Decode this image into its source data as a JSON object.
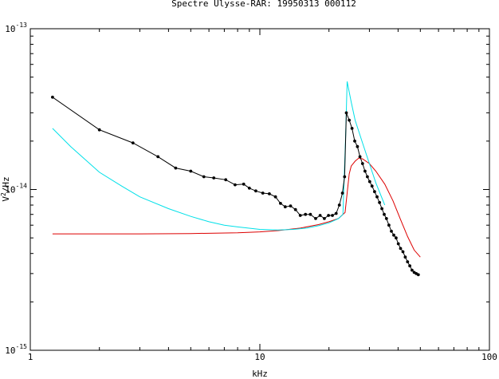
{
  "chart_data": {
    "type": "line",
    "title": "Spectre Ulysse-RAR: 19950313  000112",
    "xlabel": "kHz",
    "ylabel_base": "V",
    "ylabel_sup": "2",
    "ylabel_rest": "/Hz",
    "xscale": "log",
    "yscale": "log",
    "xlim": [
      1,
      100
    ],
    "ylim": [
      1e-15,
      1e-13
    ],
    "grid": false,
    "x_ticks": [
      {
        "value": 1,
        "label": "1"
      },
      {
        "value": 10,
        "label": "10"
      },
      {
        "value": 100,
        "label": "100"
      }
    ],
    "y_ticks": [
      {
        "value": 1e-15,
        "base": "10",
        "exp": "-15"
      },
      {
        "value": 1e-14,
        "base": "10",
        "exp": "-14"
      },
      {
        "value": 1e-13,
        "base": "10",
        "exp": "-13"
      }
    ],
    "series": [
      {
        "key": "measured",
        "color": "#000000",
        "markers": true,
        "points": [
          [
            1.25,
            3.75e-14
          ],
          [
            2.0,
            2.35e-14
          ],
          [
            2.8,
            1.95e-14
          ],
          [
            3.6,
            1.6e-14
          ],
          [
            4.3,
            1.36e-14
          ],
          [
            5.0,
            1.3e-14
          ],
          [
            5.7,
            1.2e-14
          ],
          [
            6.3,
            1.18e-14
          ],
          [
            7.1,
            1.15e-14
          ],
          [
            7.8,
            1.07e-14
          ],
          [
            8.5,
            1.08e-14
          ],
          [
            9.0,
            1.02e-14
          ],
          [
            9.6,
            9.8e-15
          ],
          [
            10.3,
            9.5e-15
          ],
          [
            11.0,
            9.4e-15
          ],
          [
            11.7,
            9e-15
          ],
          [
            12.3,
            8.2e-15
          ],
          [
            12.9,
            7.8e-15
          ],
          [
            13.6,
            7.9e-15
          ],
          [
            14.3,
            7.5e-15
          ],
          [
            15.0,
            6.9e-15
          ],
          [
            15.8,
            7e-15
          ],
          [
            16.6,
            7e-15
          ],
          [
            17.5,
            6.6e-15
          ],
          [
            18.3,
            6.9e-15
          ],
          [
            19.1,
            6.6e-15
          ],
          [
            19.9,
            6.9e-15
          ],
          [
            20.7,
            6.9e-15
          ],
          [
            21.5,
            7.1e-15
          ],
          [
            22.2,
            8e-15
          ],
          [
            22.9,
            9.5e-15
          ],
          [
            23.4,
            1.2e-14
          ],
          [
            23.8,
            3e-14
          ],
          [
            24.5,
            2.7e-14
          ],
          [
            25.2,
            2.4e-14
          ],
          [
            25.9,
            2e-14
          ],
          [
            26.6,
            1.85e-14
          ],
          [
            27.3,
            1.6e-14
          ],
          [
            28.0,
            1.45e-14
          ],
          [
            28.7,
            1.3e-14
          ],
          [
            29.4,
            1.2e-14
          ],
          [
            30.1,
            1.12e-14
          ],
          [
            30.8,
            1.05e-14
          ],
          [
            31.6,
            9.7e-15
          ],
          [
            32.4,
            9e-15
          ],
          [
            33.2,
            8.3e-15
          ],
          [
            34.0,
            7.6e-15
          ],
          [
            34.8,
            7e-15
          ],
          [
            35.6,
            6.6e-15
          ],
          [
            36.5,
            6e-15
          ],
          [
            37.4,
            5.5e-15
          ],
          [
            38.3,
            5.2e-15
          ],
          [
            39.2,
            5e-15
          ],
          [
            40.1,
            4.6e-15
          ],
          [
            41.0,
            4.3e-15
          ],
          [
            42.0,
            4.1e-15
          ],
          [
            43.0,
            3.8e-15
          ],
          [
            44.0,
            3.55e-15
          ],
          [
            45.0,
            3.35e-15
          ],
          [
            46.0,
            3.15e-15
          ],
          [
            47.0,
            3.05e-15
          ],
          [
            48.0,
            3e-15
          ],
          [
            49.0,
            2.95e-15
          ]
        ]
      },
      {
        "key": "model-cyan",
        "color": "#00e0e8",
        "markers": false,
        "points": [
          [
            1.25,
            2.4e-14
          ],
          [
            1.5,
            1.85e-14
          ],
          [
            2.0,
            1.28e-14
          ],
          [
            2.5,
            1.05e-14
          ],
          [
            3.0,
            9e-15
          ],
          [
            4.0,
            7.6e-15
          ],
          [
            5.0,
            6.8e-15
          ],
          [
            6.0,
            6.3e-15
          ],
          [
            7.0,
            6e-15
          ],
          [
            8.0,
            5.85e-15
          ],
          [
            10.0,
            5.65e-15
          ],
          [
            12.0,
            5.6e-15
          ],
          [
            14.0,
            5.65e-15
          ],
          [
            16.0,
            5.75e-15
          ],
          [
            18.0,
            5.95e-15
          ],
          [
            20.0,
            6.2e-15
          ],
          [
            22.0,
            6.6e-15
          ],
          [
            23.0,
            7e-15
          ],
          [
            23.6,
            2e-14
          ],
          [
            24.0,
            4.7e-14
          ],
          [
            25.0,
            3.5e-14
          ],
          [
            26.0,
            2.7e-14
          ],
          [
            28.0,
            1.95e-14
          ],
          [
            30.0,
            1.45e-14
          ],
          [
            32.0,
            1.1e-14
          ],
          [
            35.0,
            8e-15
          ]
        ]
      },
      {
        "key": "model-red",
        "color": "#dd0000",
        "markers": false,
        "points": [
          [
            1.25,
            5.3e-15
          ],
          [
            2.0,
            5.3e-15
          ],
          [
            3.0,
            5.3e-15
          ],
          [
            5.0,
            5.32e-15
          ],
          [
            8.0,
            5.38e-15
          ],
          [
            10.0,
            5.45e-15
          ],
          [
            12.0,
            5.55e-15
          ],
          [
            15.0,
            5.75e-15
          ],
          [
            18.0,
            6.05e-15
          ],
          [
            20.0,
            6.3e-15
          ],
          [
            22.0,
            6.6e-15
          ],
          [
            23.5,
            7.2e-15
          ],
          [
            24.0,
            9.5e-15
          ],
          [
            24.5,
            1.25e-14
          ],
          [
            25.0,
            1.4e-14
          ],
          [
            26.0,
            1.5e-14
          ],
          [
            27.0,
            1.57e-14
          ],
          [
            28.0,
            1.55e-14
          ],
          [
            30.0,
            1.45e-14
          ],
          [
            32.0,
            1.3e-14
          ],
          [
            35.0,
            1.08e-14
          ],
          [
            38.0,
            8.5e-15
          ],
          [
            41.0,
            6.5e-15
          ],
          [
            44.0,
            5.1e-15
          ],
          [
            47.0,
            4.2e-15
          ],
          [
            50.0,
            3.8e-15
          ]
        ]
      }
    ]
  }
}
